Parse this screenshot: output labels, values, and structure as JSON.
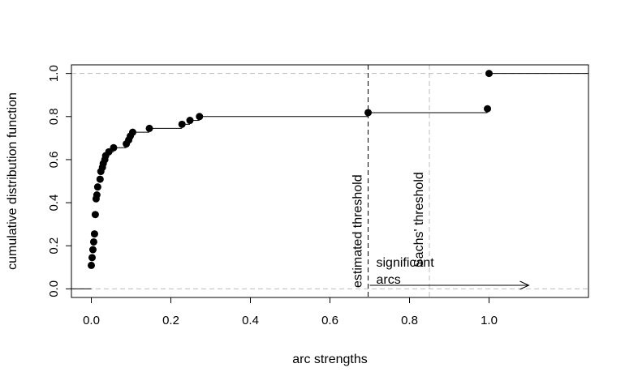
{
  "chart_data": {
    "type": "scatter",
    "subtype": "empirical-cdf-step",
    "title": "",
    "xlabel": "arc strengths",
    "ylabel": "cumulative distribution function",
    "xlim": [
      -0.05,
      1.25
    ],
    "ylim": [
      -0.04,
      1.04
    ],
    "xticks": [
      0.0,
      0.2,
      0.4,
      0.6,
      0.8,
      1.0
    ],
    "xtick_labels": [
      "0.0",
      "0.2",
      "0.4",
      "0.6",
      "0.8",
      "1.0"
    ],
    "yticks": [
      0.0,
      0.2,
      0.4,
      0.6,
      0.8,
      1.0
    ],
    "ytick_labels": [
      "0.0",
      "0.2",
      "0.4",
      "0.6",
      "0.8",
      "1.0"
    ],
    "points": [
      {
        "x": 0.0,
        "y": 0.109
      },
      {
        "x": 0.002,
        "y": 0.145
      },
      {
        "x": 0.004,
        "y": 0.182
      },
      {
        "x": 0.006,
        "y": 0.218
      },
      {
        "x": 0.008,
        "y": 0.255
      },
      {
        "x": 0.01,
        "y": 0.345
      },
      {
        "x": 0.012,
        "y": 0.418
      },
      {
        "x": 0.014,
        "y": 0.436
      },
      {
        "x": 0.016,
        "y": 0.473
      },
      {
        "x": 0.022,
        "y": 0.509
      },
      {
        "x": 0.024,
        "y": 0.545
      },
      {
        "x": 0.028,
        "y": 0.564
      },
      {
        "x": 0.03,
        "y": 0.582
      },
      {
        "x": 0.034,
        "y": 0.6
      },
      {
        "x": 0.036,
        "y": 0.618
      },
      {
        "x": 0.044,
        "y": 0.636
      },
      {
        "x": 0.056,
        "y": 0.655
      },
      {
        "x": 0.088,
        "y": 0.673
      },
      {
        "x": 0.094,
        "y": 0.691
      },
      {
        "x": 0.098,
        "y": 0.709
      },
      {
        "x": 0.104,
        "y": 0.727
      },
      {
        "x": 0.146,
        "y": 0.745
      },
      {
        "x": 0.228,
        "y": 0.764
      },
      {
        "x": 0.248,
        "y": 0.782
      },
      {
        "x": 0.272,
        "y": 0.8
      },
      {
        "x": 0.696,
        "y": 0.818
      },
      {
        "x": 0.996,
        "y": 0.836
      },
      {
        "x": 1.0,
        "y": 1.0
      }
    ],
    "hlines": [
      0.0,
      1.0
    ],
    "thresholds": {
      "estimated": 0.696,
      "sachs": 0.85
    },
    "annotations": {
      "estimated_threshold": "estimated threshold",
      "sachs_threshold": "Sachs' threshold",
      "significant_line1": "significant",
      "significant_line2": "arcs"
    },
    "arrow": {
      "x_from": 0.7,
      "x_to": 1.1,
      "y": 0.02
    },
    "grid": false,
    "legend": "none",
    "colors": {
      "points": "#000000",
      "step": "#000000",
      "reference": "#bdbdbd",
      "estimated_line": "#000000"
    }
  }
}
